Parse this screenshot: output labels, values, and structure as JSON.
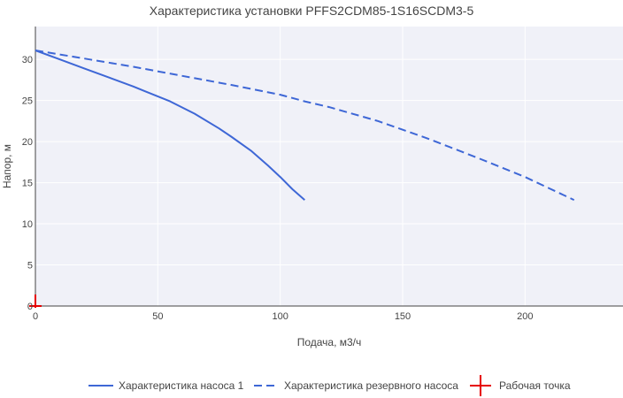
{
  "chart_data": {
    "type": "line",
    "title": "Характеристика установки PFFS2CDM85-1S16SCDM3-5",
    "xlabel": "Подача, м3/ч",
    "ylabel": "Напор, м",
    "xlim": [
      0,
      240
    ],
    "ylim": [
      0,
      34
    ],
    "xticks": [
      0,
      50,
      100,
      150,
      200
    ],
    "yticks": [
      0,
      5,
      10,
      15,
      20,
      25,
      30
    ],
    "grid": true,
    "legend_position": "bottom",
    "series": [
      {
        "name": "Характеристика насоса 1",
        "style": "solid",
        "color": "#3e67d6",
        "x": [
          0,
          10,
          20,
          30,
          40,
          45,
          55,
          65,
          75,
          80,
          88,
          95,
          100,
          105,
          110
        ],
        "y": [
          31.1,
          30.0,
          28.9,
          27.8,
          26.7,
          26.1,
          24.9,
          23.4,
          21.6,
          20.6,
          18.9,
          17.1,
          15.7,
          14.2,
          12.9
        ]
      },
      {
        "name": "Характеристика резервного насоса",
        "style": "dash",
        "color": "#3e67d6",
        "x": [
          0,
          20,
          40,
          60,
          80,
          100,
          110,
          120,
          140,
          160,
          180,
          200,
          210,
          220
        ],
        "y": [
          31.1,
          30.1,
          29.1,
          28.0,
          26.9,
          25.7,
          24.9,
          24.2,
          22.5,
          20.4,
          18.1,
          15.7,
          14.3,
          12.9
        ]
      }
    ],
    "operating_point": {
      "name": "Рабочая точка",
      "color": "#e60000",
      "x": 0,
      "y": 0
    }
  }
}
